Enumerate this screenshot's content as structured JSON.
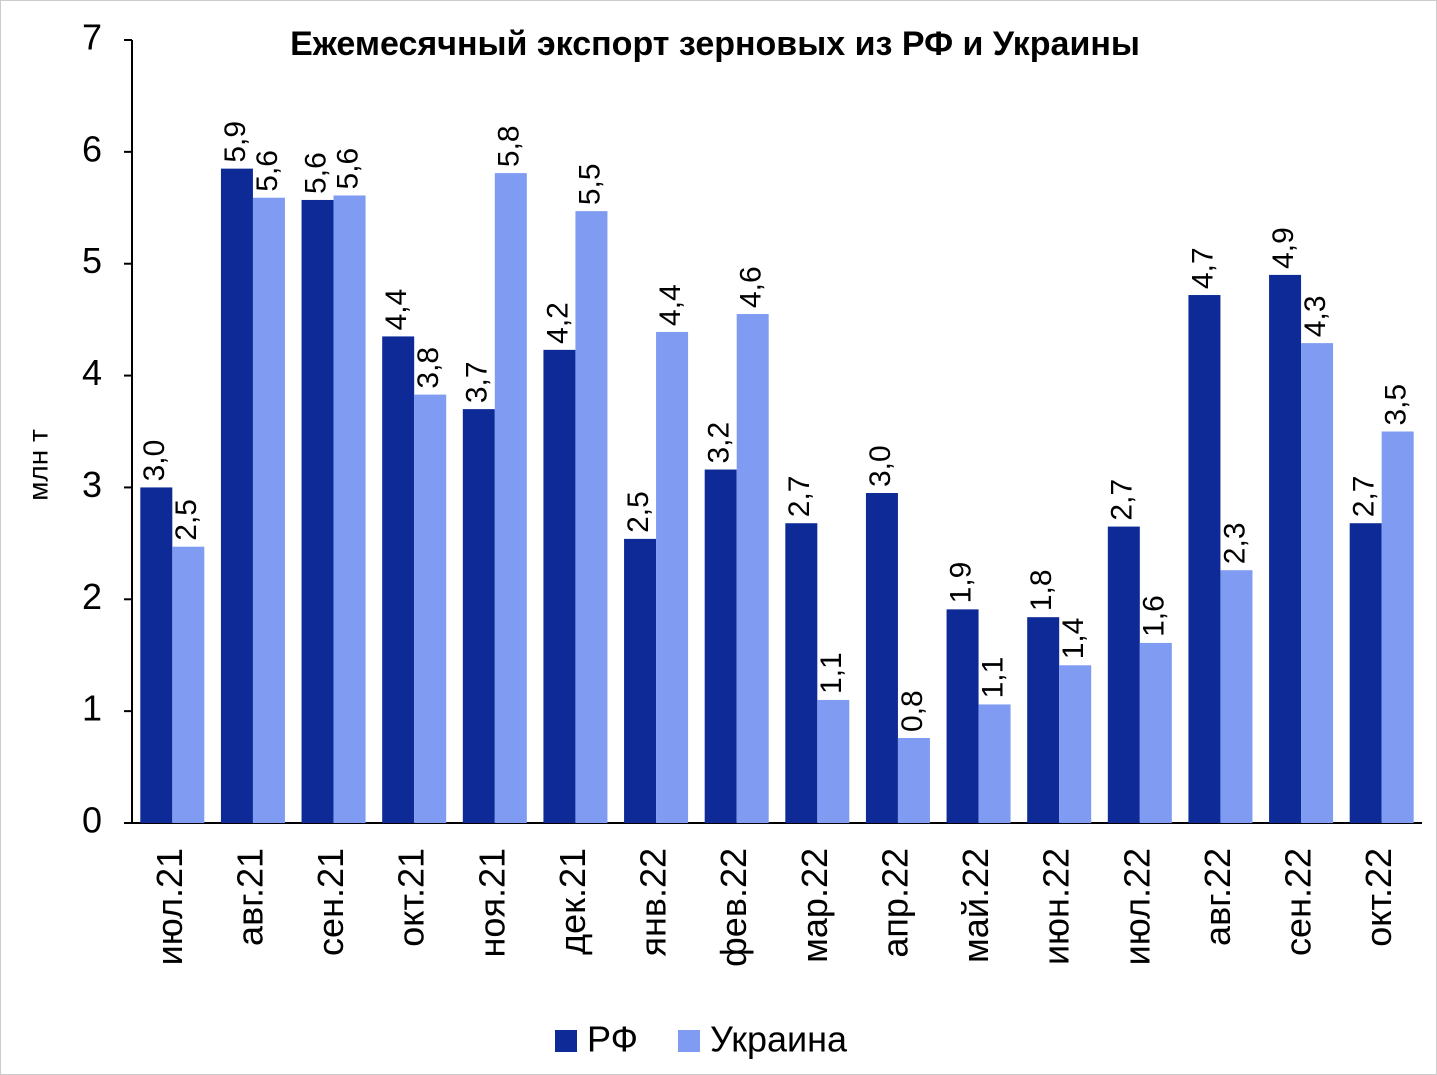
{
  "chart_data": {
    "type": "bar",
    "title": "Ежемесячный экспорт зерновых из РФ и Украины",
    "y_label": "млн т",
    "categories": [
      "июл.21",
      "авг.21",
      "сен.21",
      "окт.21",
      "ноя.21",
      "дек.21",
      "янв.22",
      "фев.22",
      "мар.22",
      "апр.22",
      "май.22",
      "июн.22",
      "июл.22",
      "авг.22",
      "сен.22",
      "окт.22"
    ],
    "series": [
      {
        "name": "РФ",
        "color": "#0d2a96",
        "values": [
          3.0,
          5.85,
          5.57,
          4.35,
          3.7,
          4.23,
          2.54,
          3.16,
          2.68,
          2.95,
          1.91,
          1.84,
          2.65,
          4.72,
          4.9,
          2.68
        ],
        "value_labels": [
          "3,0",
          "5,9",
          "5,6",
          "4,4",
          "3,7",
          "4,2",
          "2,5",
          "3,2",
          "2,7",
          "3,0",
          "1,9",
          "1,8",
          "2,7",
          "4,7",
          "4,9",
          "2,7"
        ]
      },
      {
        "name": "Украина",
        "color": "#7f9bf2",
        "values": [
          2.47,
          5.59,
          5.61,
          3.83,
          5.81,
          5.47,
          4.39,
          4.55,
          1.1,
          0.76,
          1.06,
          1.41,
          1.61,
          2.26,
          4.29,
          3.5
        ],
        "value_labels": [
          "2,5",
          "5,6",
          "5,6",
          "3,8",
          "5,8",
          "5,5",
          "4,4",
          "4,6",
          "1,1",
          "0,8",
          "1,1",
          "1,4",
          "1,6",
          "2,3",
          "4,3",
          "3,5"
        ]
      }
    ],
    "ylim": [
      0,
      7
    ],
    "yticks": [
      0,
      1,
      2,
      3,
      4,
      5,
      6,
      7
    ],
    "legend": "bottom"
  }
}
